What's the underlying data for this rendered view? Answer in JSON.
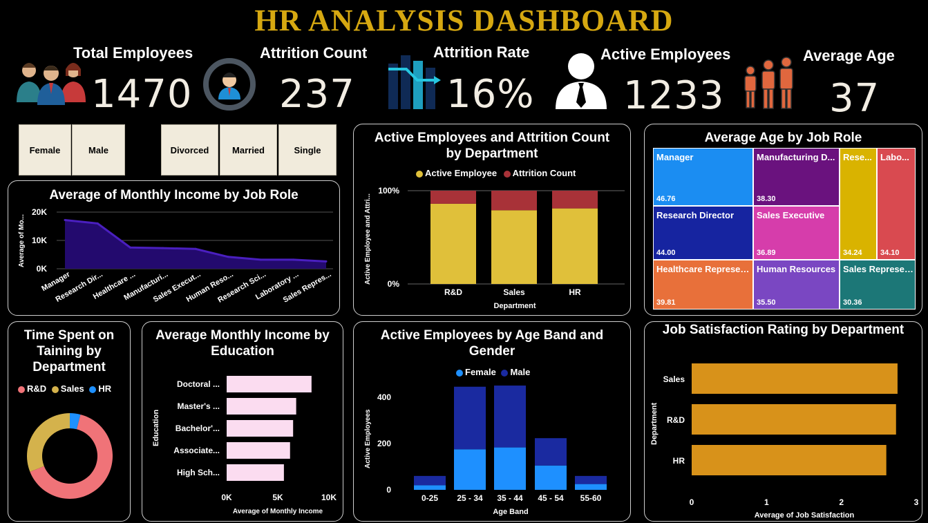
{
  "title": "HR ANALYSIS DASHBOARD",
  "kpis": {
    "total_employees": {
      "label": "Total Employees",
      "value": "1470"
    },
    "attrition_count": {
      "label": "Attrition Count",
      "value": "237"
    },
    "attrition_rate": {
      "label": "Attrition Rate",
      "value": "16%"
    },
    "active_employees": {
      "label": "Active Employees",
      "value": "1233"
    },
    "average_age": {
      "label": "Average Age",
      "value": "37"
    }
  },
  "slicers": {
    "gender": [
      "Female",
      "Male"
    ],
    "marital": [
      "Divorced",
      "Married",
      "Single"
    ]
  },
  "colors": {
    "title": "#d6a811",
    "active": "#e0c03a",
    "attrition": "#a83238",
    "income_line": "#4a1fbf",
    "female": "#1e90ff",
    "male": "#1a2aa0",
    "edu_bar": "#fbdcf0",
    "jobsat_bar": "#d8921a"
  },
  "icons": [
    "team-icon",
    "attrition-cycle-icon",
    "attrition-rate-icon",
    "person-tie-icon",
    "age-group-icon"
  ],
  "chart_data": [
    {
      "id": "income_by_role",
      "type": "area",
      "title": "Average of Monthly Income by Job Role",
      "xlabel": "",
      "ylabel": "Average of Mo...",
      "categories": [
        "Manager",
        "Research Dir...",
        "Healthcare ...",
        "Manufacturi...",
        "Sales Execut...",
        "Human Reso...",
        "Research Sci...",
        "Laboratory ...",
        "Sales Repres..."
      ],
      "values": [
        17200,
        16000,
        7500,
        7300,
        7000,
        4200,
        3200,
        3200,
        2600
      ],
      "yticks": [
        "0K",
        "10K",
        "20K"
      ],
      "ylim": [
        0,
        20000
      ]
    },
    {
      "id": "active_attrition_by_dept",
      "type": "bar",
      "title": "Active Employees and Attrition Count by Department",
      "xlabel": "Department",
      "ylabel": "Active Employee and Attri...",
      "categories": [
        "R&D",
        "Sales",
        "HR"
      ],
      "series": [
        {
          "name": "Active Employee",
          "values": [
            86,
            79,
            81
          ]
        },
        {
          "name": "Attrition Count",
          "values": [
            14,
            21,
            19
          ]
        }
      ],
      "yticks": [
        "0%",
        "100%"
      ],
      "ylim": [
        0,
        100
      ]
    },
    {
      "id": "age_by_role",
      "type": "treemap",
      "title": "Average Age by Job Role",
      "items": [
        {
          "name": "Manager",
          "value": "46.76",
          "color": "#1b8df2"
        },
        {
          "name": "Manufacturing D...",
          "value": "38.30",
          "color": "#6a127e"
        },
        {
          "name": "Rese...",
          "value": "34.24",
          "color": "#d9b300"
        },
        {
          "name": "Labo...",
          "value": "34.10",
          "color": "#d94a50"
        },
        {
          "name": "Research Director",
          "value": "44.00",
          "color": "#1624a0"
        },
        {
          "name": "Sales Executive",
          "value": "36.89",
          "color": "#d63dab"
        },
        {
          "name": "Healthcare Represen...",
          "value": "39.81",
          "color": "#e8703a"
        },
        {
          "name": "Human Resources",
          "value": "35.50",
          "color": "#7a47c2"
        },
        {
          "name": "Sales Represen...",
          "value": "30.36",
          "color": "#1c7777"
        }
      ]
    },
    {
      "id": "training_by_dept",
      "type": "pie",
      "title": "Time Spent on Taining by Department",
      "categories": [
        "R&D",
        "Sales",
        "HR"
      ],
      "values": [
        65,
        31,
        4
      ],
      "colors": [
        "#f07378",
        "#d4b24c",
        "#1e90ff"
      ]
    },
    {
      "id": "income_by_education",
      "type": "bar",
      "title": "Average Monthly Income by Education",
      "xlabel": "Average of Monthly Income",
      "ylabel": "Education",
      "categories": [
        "Doctoral ...",
        "Master's ...",
        "Bachelor'...",
        "Associate...",
        "High Sch..."
      ],
      "values": [
        8300,
        6800,
        6500,
        6200,
        5600
      ],
      "xticks": [
        "0K",
        "5K",
        "10K"
      ],
      "xlim": [
        0,
        10000
      ]
    },
    {
      "id": "active_by_ageband_gender",
      "type": "bar",
      "title": "Active Employees by Age Band and Gender",
      "xlabel": "Age Band",
      "ylabel": "Active Employees",
      "categories": [
        "0-25",
        "25 - 34",
        "35 - 44",
        "45 - 54",
        "55-60"
      ],
      "series": [
        {
          "name": "Female",
          "values": [
            20,
            175,
            183,
            105,
            25
          ]
        },
        {
          "name": "Male",
          "values": [
            40,
            270,
            267,
            118,
            35
          ]
        }
      ],
      "yticks": [
        "0",
        "200",
        "400"
      ],
      "ylim": [
        0,
        480
      ]
    },
    {
      "id": "jobsat_by_dept",
      "type": "bar",
      "title": "Job Satisfaction Rating by Department",
      "xlabel": "Average of Job Satisfaction",
      "ylabel": "Department",
      "categories": [
        "Sales",
        "R&D",
        "HR"
      ],
      "values": [
        2.75,
        2.73,
        2.6
      ],
      "xticks": [
        "0",
        "1",
        "2",
        "3"
      ],
      "xlim": [
        0,
        3
      ]
    }
  ]
}
